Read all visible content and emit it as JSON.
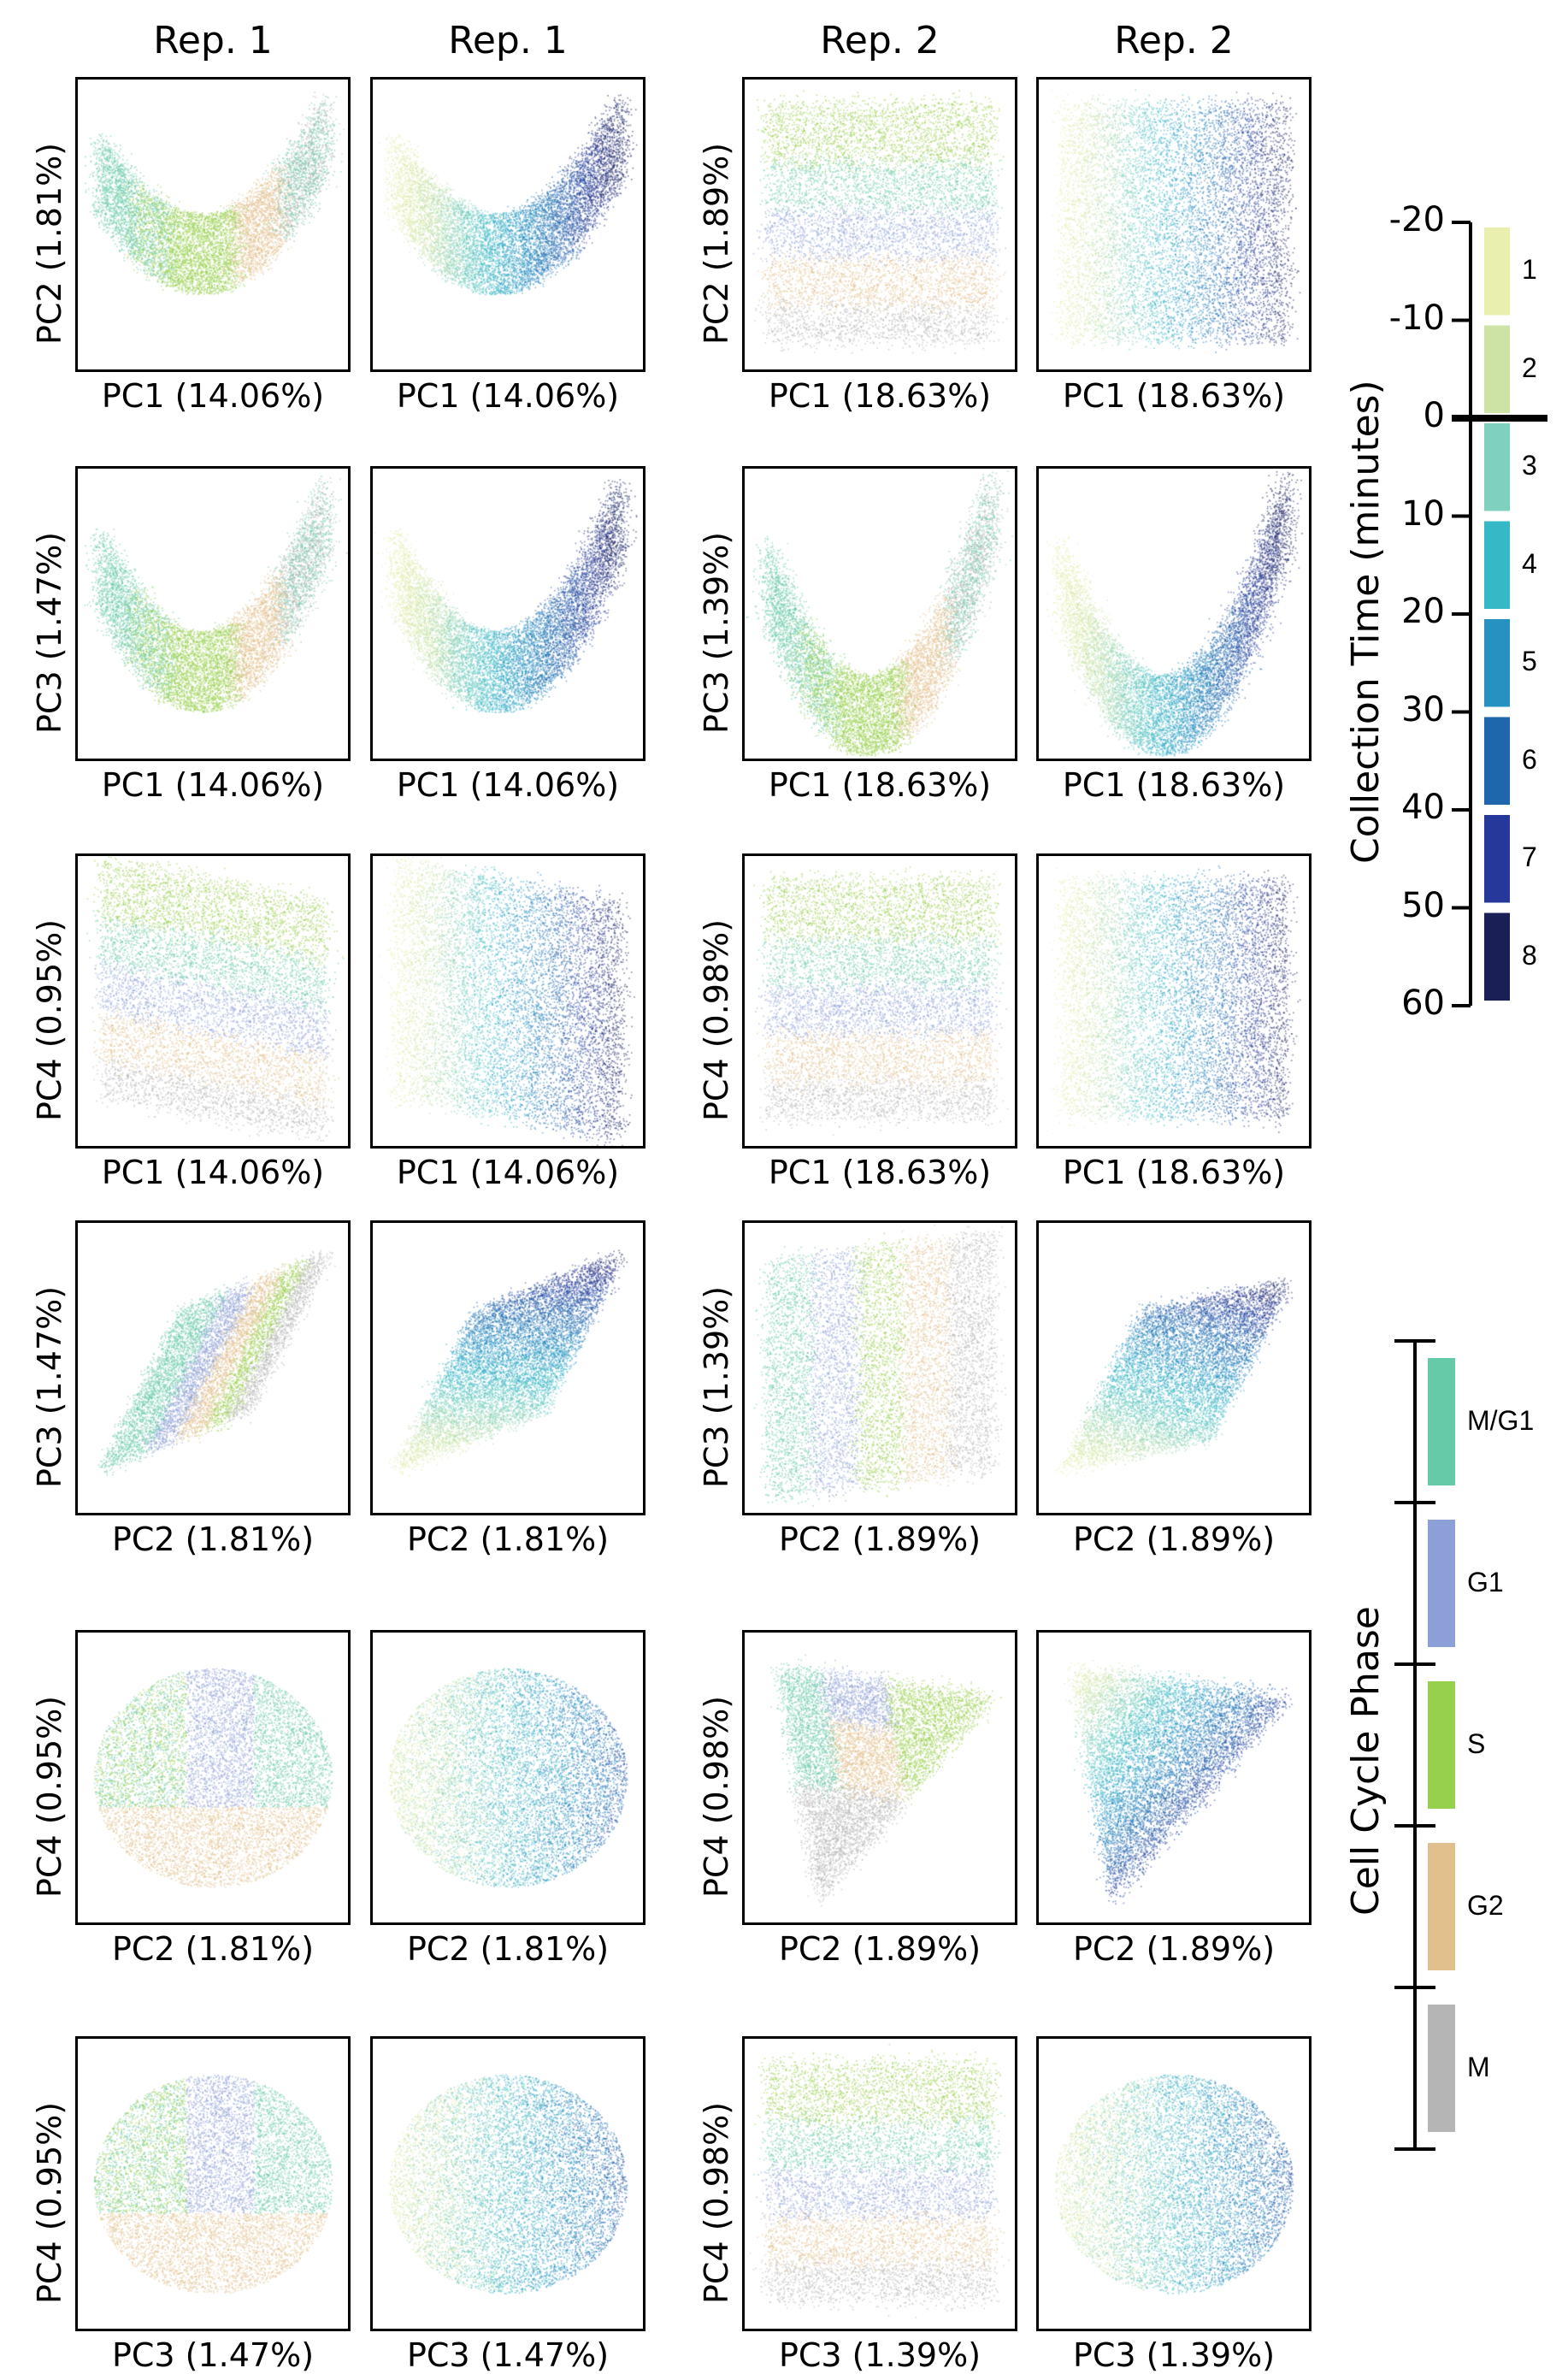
{
  "columns": [
    "Rep. 1",
    "Rep. 1",
    "Rep. 2",
    "Rep. 2"
  ],
  "chart_data": [
    {
      "row": 1,
      "col": 1,
      "type": "scatter",
      "xlabel": "PC1 (14.06%)",
      "ylabel": "PC2 (1.81%)",
      "coloring": "cell_cycle_phase"
    },
    {
      "row": 1,
      "col": 2,
      "type": "scatter",
      "xlabel": "PC1 (14.06%)",
      "ylabel": "",
      "coloring": "collection_time"
    },
    {
      "row": 1,
      "col": 3,
      "type": "scatter",
      "xlabel": "PC1 (18.63%)",
      "ylabel": "PC2 (1.89%)",
      "coloring": "cell_cycle_phase"
    },
    {
      "row": 1,
      "col": 4,
      "type": "scatter",
      "xlabel": "PC1 (18.63%)",
      "ylabel": "",
      "coloring": "collection_time"
    },
    {
      "row": 2,
      "col": 1,
      "type": "scatter",
      "xlabel": "PC1 (14.06%)",
      "ylabel": "PC3 (1.47%)",
      "coloring": "cell_cycle_phase"
    },
    {
      "row": 2,
      "col": 2,
      "type": "scatter",
      "xlabel": "PC1 (14.06%)",
      "ylabel": "",
      "coloring": "collection_time"
    },
    {
      "row": 2,
      "col": 3,
      "type": "scatter",
      "xlabel": "PC1 (18.63%)",
      "ylabel": "PC3 (1.39%)",
      "coloring": "cell_cycle_phase"
    },
    {
      "row": 2,
      "col": 4,
      "type": "scatter",
      "xlabel": "PC1 (18.63%)",
      "ylabel": "",
      "coloring": "collection_time"
    },
    {
      "row": 3,
      "col": 1,
      "type": "scatter",
      "xlabel": "PC1 (14.06%)",
      "ylabel": "PC4 (0.95%)",
      "coloring": "cell_cycle_phase"
    },
    {
      "row": 3,
      "col": 2,
      "type": "scatter",
      "xlabel": "PC1 (14.06%)",
      "ylabel": "",
      "coloring": "collection_time"
    },
    {
      "row": 3,
      "col": 3,
      "type": "scatter",
      "xlabel": "PC1 (18.63%)",
      "ylabel": "PC4 (0.98%)",
      "coloring": "cell_cycle_phase"
    },
    {
      "row": 3,
      "col": 4,
      "type": "scatter",
      "xlabel": "PC1 (18.63%)",
      "ylabel": "",
      "coloring": "collection_time"
    },
    {
      "row": 4,
      "col": 1,
      "type": "scatter",
      "xlabel": "PC2 (1.81%)",
      "ylabel": "PC3 (1.47%)",
      "coloring": "cell_cycle_phase"
    },
    {
      "row": 4,
      "col": 2,
      "type": "scatter",
      "xlabel": "PC2 (1.81%)",
      "ylabel": "",
      "coloring": "collection_time"
    },
    {
      "row": 4,
      "col": 3,
      "type": "scatter",
      "xlabel": "PC2 (1.89%)",
      "ylabel": "PC3 (1.39%)",
      "coloring": "cell_cycle_phase"
    },
    {
      "row": 4,
      "col": 4,
      "type": "scatter",
      "xlabel": "PC2 (1.89%)",
      "ylabel": "",
      "coloring": "collection_time"
    },
    {
      "row": 5,
      "col": 1,
      "type": "scatter",
      "xlabel": "PC2 (1.81%)",
      "ylabel": "PC4 (0.95%)",
      "coloring": "cell_cycle_phase"
    },
    {
      "row": 5,
      "col": 2,
      "type": "scatter",
      "xlabel": "PC2 (1.81%)",
      "ylabel": "",
      "coloring": "collection_time"
    },
    {
      "row": 5,
      "col": 3,
      "type": "scatter",
      "xlabel": "PC2 (1.89%)",
      "ylabel": "PC4 (0.98%)",
      "coloring": "cell_cycle_phase"
    },
    {
      "row": 5,
      "col": 4,
      "type": "scatter",
      "xlabel": "PC2 (1.89%)",
      "ylabel": "",
      "coloring": "collection_time"
    },
    {
      "row": 6,
      "col": 1,
      "type": "scatter",
      "xlabel": "PC3 (1.47%)",
      "ylabel": "PC4 (0.95%)",
      "coloring": "cell_cycle_phase"
    },
    {
      "row": 6,
      "col": 2,
      "type": "scatter",
      "xlabel": "PC3 (1.47%)",
      "ylabel": "",
      "coloring": "collection_time"
    },
    {
      "row": 6,
      "col": 3,
      "type": "scatter",
      "xlabel": "PC3 (1.39%)",
      "ylabel": "PC4 (0.98%)",
      "coloring": "cell_cycle_phase"
    },
    {
      "row": 6,
      "col": 4,
      "type": "scatter",
      "xlabel": "PC3 (1.39%)",
      "ylabel": "",
      "coloring": "collection_time"
    }
  ],
  "time_legend": {
    "title": "Collection Time (minutes)",
    "ticks": [
      "-20",
      "-10",
      "0",
      "10",
      "20",
      "30",
      "40",
      "50",
      "60"
    ],
    "bins": [
      {
        "label": "1",
        "color": "#e9efae"
      },
      {
        "label": "2",
        "color": "#cde3a6"
      },
      {
        "label": "3",
        "color": "#7fd0bc"
      },
      {
        "label": "4",
        "color": "#37b8c7"
      },
      {
        "label": "5",
        "color": "#2791c2"
      },
      {
        "label": "6",
        "color": "#1f66ad"
      },
      {
        "label": "7",
        "color": "#26389a"
      },
      {
        "label": "8",
        "color": "#1a1f55"
      }
    ]
  },
  "phase_legend": {
    "title": "Cell Cycle Phase",
    "phases": [
      {
        "label": "M/G1",
        "color": "#66c9a8"
      },
      {
        "label": "G1",
        "color": "#8c9fd6"
      },
      {
        "label": "S",
        "color": "#97d04d"
      },
      {
        "label": "G2",
        "color": "#e2c08d"
      },
      {
        "label": "M",
        "color": "#b5b5b5"
      }
    ]
  }
}
